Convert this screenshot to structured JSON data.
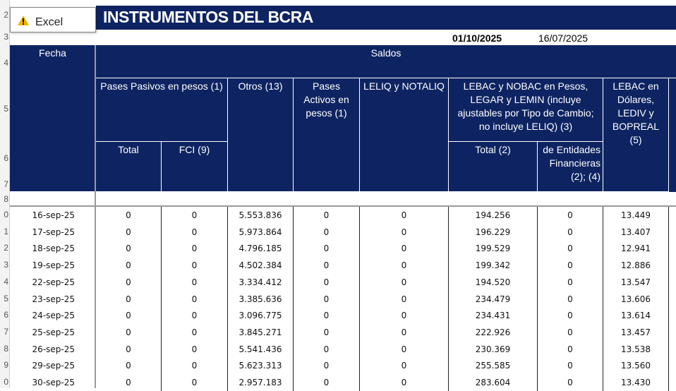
{
  "popup": {
    "label": "Excel"
  },
  "title": "INSTRUMENTOS DEL BCRA",
  "dates": {
    "current": "01/10/2025",
    "previous": "16/07/2025"
  },
  "row_numbers": [
    "2",
    "3",
    "4",
    "5",
    "6",
    "7",
    "8",
    "0",
    "1",
    "2",
    "3",
    "4",
    "5",
    "6",
    "7",
    "8",
    "9",
    "0"
  ],
  "header": {
    "fecha": "Fecha",
    "saldos": "Saldos",
    "pases_pasivos": "Pases Pasivos en pesos (1)",
    "total": "Total",
    "fci": "FCI (9)",
    "otros": "Otros (13)",
    "pases_activos": "Pases Activos en pesos (1)",
    "leliq": "LELIQ y NOTALIQ",
    "lebac": "LEBAC y NOBAC en Pesos, LEGAR y LEMIN (incluye ajustables por Tipo de Cambio; no incluye LELIQ) (3)",
    "lebac_total": "Total (2)",
    "lebac_entidades": "de Entidades Financieras (2); (4)",
    "lebac_usd": "LEBAC en Dólares, LEDIV y BOPREAL (5)"
  },
  "table": {
    "rows": [
      [
        "16-sep-25",
        "0",
        "0",
        "5.553.836",
        "0",
        "0",
        "194.256",
        "0",
        "13.449"
      ],
      [
        "17-sep-25",
        "0",
        "0",
        "5.973.864",
        "0",
        "0",
        "196.229",
        "0",
        "13.407"
      ],
      [
        "18-sep-25",
        "0",
        "0",
        "4.796.185",
        "0",
        "0",
        "199.529",
        "0",
        "12.941"
      ],
      [
        "19-sep-25",
        "0",
        "0",
        "4.502.384",
        "0",
        "0",
        "199.342",
        "0",
        "12.886"
      ],
      [
        "22-sep-25",
        "0",
        "0",
        "3.334.412",
        "0",
        "0",
        "194.520",
        "0",
        "13.547"
      ],
      [
        "23-sep-25",
        "0",
        "0",
        "3.385.636",
        "0",
        "0",
        "234.479",
        "0",
        "13.606"
      ],
      [
        "24-sep-25",
        "0",
        "0",
        "3.096.775",
        "0",
        "0",
        "234.431",
        "0",
        "13.614"
      ],
      [
        "25-sep-25",
        "0",
        "0",
        "3.845.271",
        "0",
        "0",
        "222.926",
        "0",
        "13.457"
      ],
      [
        "26-sep-25",
        "0",
        "0",
        "5.541.436",
        "0",
        "0",
        "230.369",
        "0",
        "13.538"
      ],
      [
        "29-sep-25",
        "0",
        "0",
        "5.623.313",
        "0",
        "0",
        "255.585",
        "0",
        "13.560"
      ],
      [
        "30-sep-25",
        "0",
        "0",
        "2.957.183",
        "0",
        "0",
        "283.604",
        "0",
        "13.430"
      ]
    ]
  }
}
